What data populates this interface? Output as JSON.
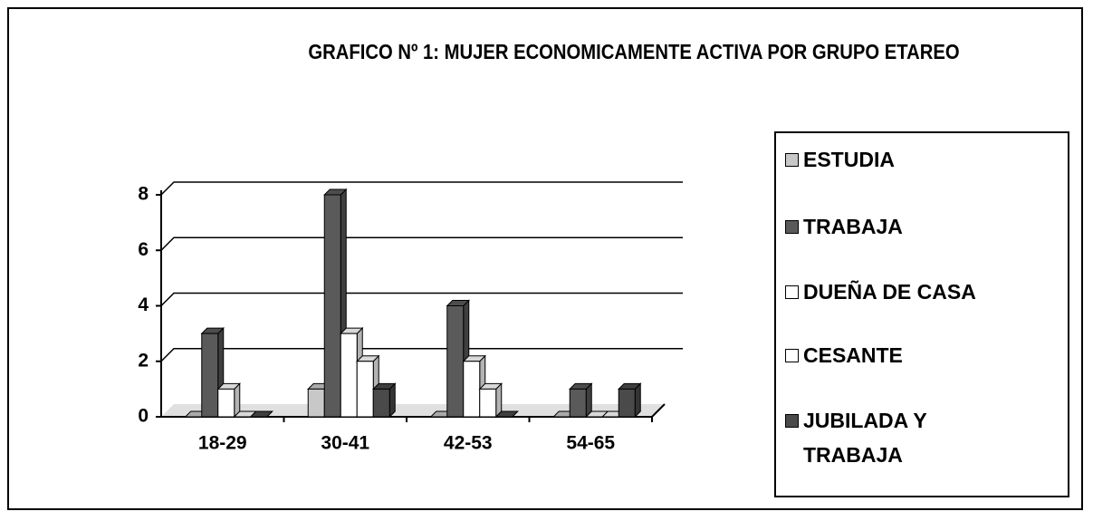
{
  "chart_data": {
    "type": "bar",
    "title": "GRAFICO Nº 1: MUJER ECONOMICAMENTE ACTIVA POR GRUPO ETAREO",
    "categories": [
      "18-29",
      "30-41",
      "42-53",
      "54-65"
    ],
    "series": [
      {
        "name": "ESTUDIA",
        "color": "#c8c8c8",
        "values": [
          0,
          1,
          0,
          0
        ]
      },
      {
        "name": "TRABAJA",
        "color": "#5a5a5a",
        "values": [
          3,
          8,
          4,
          1
        ]
      },
      {
        "name": "DUEÑA DE CASA",
        "color": "#ffffff",
        "values": [
          1,
          3,
          2,
          0
        ]
      },
      {
        "name": "CESANTE",
        "color": "#ffffff",
        "values": [
          0,
          2,
          1,
          0
        ]
      },
      {
        "name": "JUBILADA Y TRABAJA",
        "color": "#4a4a4a",
        "values": [
          0,
          1,
          0,
          1
        ]
      }
    ],
    "ylim": [
      0,
      8
    ],
    "yticks": [
      0,
      2,
      4,
      6,
      8
    ],
    "grid": true,
    "legend": "right"
  }
}
